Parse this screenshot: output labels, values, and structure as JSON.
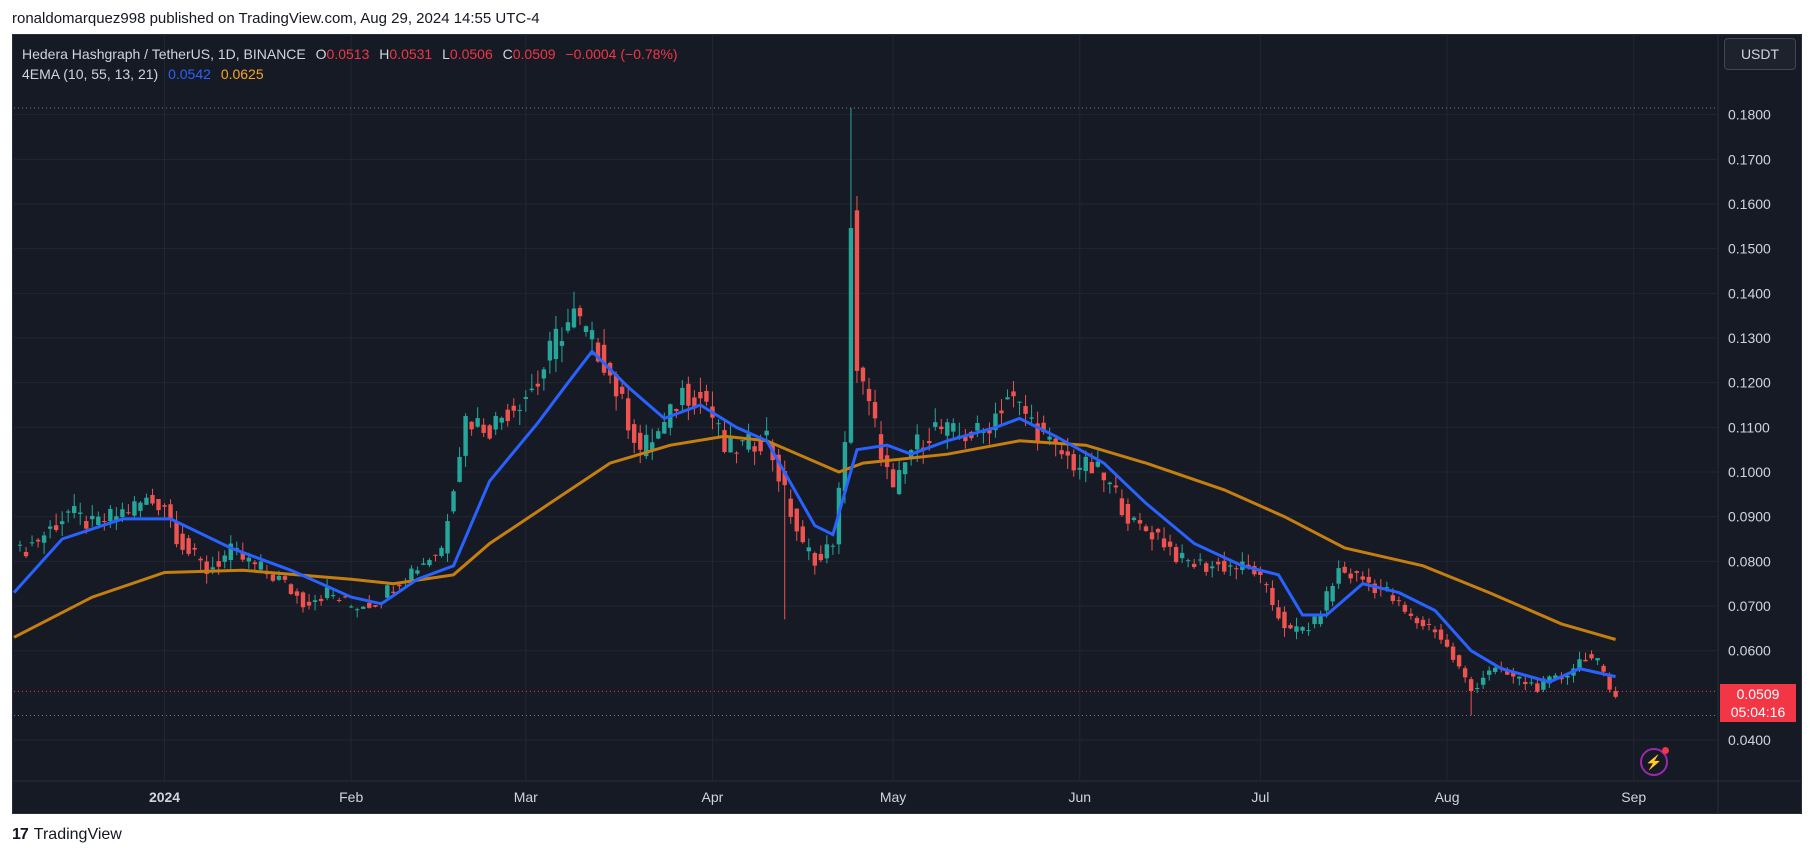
{
  "header": {
    "published": "ronaldomarquez998 published on TradingView.com, Aug 29, 2024 14:55 UTC-4"
  },
  "legend": {
    "symbol": "Hedera Hashgraph / TetherUS, 1D, BINANCE",
    "o_label": "O",
    "o_value": "0.0513",
    "h_label": "H",
    "h_value": "0.0531",
    "l_label": "L",
    "l_value": "0.0506",
    "c_label": "C",
    "c_value": "0.0509",
    "change": "−0.0004 (−0.78%)",
    "indicator": "4EMA (10, 55, 13, 21)",
    "ema_fast_value": "0.0542",
    "ema_slow_value": "0.0625"
  },
  "currency_button": "USDT",
  "price_tag": {
    "price": "0.0509",
    "countdown": "05:04:16"
  },
  "brand": "TradingView",
  "colors": {
    "up": "#26a69a",
    "down": "#ef5350",
    "ema_fast": "#2962ff",
    "ema_slow": "#c47f10",
    "bg": "#161a25"
  },
  "chart_data": {
    "type": "candlestick",
    "title": "Hedera Hashgraph / TetherUS, 1D, BINANCE",
    "xlabel": "",
    "ylabel": "",
    "x_ticks": [
      "2024",
      "Feb",
      "Mar",
      "Apr",
      "May",
      "Jun",
      "Jul",
      "Aug",
      "Sep"
    ],
    "y_ticks": [
      "0.1800",
      "0.1700",
      "0.1600",
      "0.1500",
      "0.1400",
      "0.1300",
      "0.1200",
      "0.1100",
      "0.1000",
      "0.0900",
      "0.0800",
      "0.0700",
      "0.0600",
      "0.0400"
    ],
    "ylim": [
      0.0315,
      0.19
    ],
    "x_range": [
      "2023-12-07",
      "2024-09-15"
    ],
    "reference_lines": [
      0.1815,
      0.0509,
      0.0455
    ],
    "series": [
      {
        "name": "HBAR/USDT",
        "points": [
          [
            "2023-12-08",
            0.082
          ],
          [
            "2023-12-12",
            0.086
          ],
          [
            "2023-12-16",
            0.091
          ],
          [
            "2023-12-20",
            0.088
          ],
          [
            "2023-12-25",
            0.091
          ],
          [
            "2023-12-29",
            0.0935
          ],
          [
            "2024-01-01",
            0.093
          ],
          [
            "2024-01-03",
            0.086
          ],
          [
            "2024-01-05",
            0.082
          ],
          [
            "2024-01-08",
            0.078
          ],
          [
            "2024-01-12",
            0.082
          ],
          [
            "2024-01-16",
            0.079
          ],
          [
            "2024-01-20",
            0.076
          ],
          [
            "2024-01-24",
            0.071
          ],
          [
            "2024-01-28",
            0.073
          ],
          [
            "2024-02-01",
            0.07
          ],
          [
            "2024-02-05",
            0.071
          ],
          [
            "2024-02-09",
            0.076
          ],
          [
            "2024-02-13",
            0.08
          ],
          [
            "2024-02-16",
            0.083
          ],
          [
            "2024-02-18",
            0.098
          ],
          [
            "2024-02-20",
            0.112
          ],
          [
            "2024-02-24",
            0.11
          ],
          [
            "2024-02-28",
            0.115
          ],
          [
            "2024-03-03",
            0.12
          ],
          [
            "2024-03-06",
            0.13
          ],
          [
            "2024-03-09",
            0.135
          ],
          [
            "2024-03-12",
            0.129
          ],
          [
            "2024-03-14",
            0.125
          ],
          [
            "2024-03-17",
            0.115
          ],
          [
            "2024-03-20",
            0.105
          ],
          [
            "2024-03-24",
            0.11
          ],
          [
            "2024-03-27",
            0.118
          ],
          [
            "2024-03-31",
            0.116
          ],
          [
            "2024-04-03",
            0.105
          ],
          [
            "2024-04-07",
            0.106
          ],
          [
            "2024-04-10",
            0.108
          ],
          [
            "2024-04-13",
            0.095
          ],
          [
            "2024-04-16",
            0.083
          ],
          [
            "2024-04-19",
            0.08
          ],
          [
            "2024-04-21",
            0.085
          ],
          [
            "2024-04-23",
            0.105
          ],
          [
            "2024-04-24",
            0.157
          ],
          [
            "2024-04-25",
            0.123
          ],
          [
            "2024-04-28",
            0.11
          ],
          [
            "2024-05-01",
            0.095
          ],
          [
            "2024-05-04",
            0.105
          ],
          [
            "2024-05-08",
            0.11
          ],
          [
            "2024-05-12",
            0.108
          ],
          [
            "2024-05-16",
            0.109
          ],
          [
            "2024-05-20",
            0.117
          ],
          [
            "2024-05-23",
            0.113
          ],
          [
            "2024-05-27",
            0.106
          ],
          [
            "2024-05-31",
            0.102
          ],
          [
            "2024-06-04",
            0.1
          ],
          [
            "2024-06-07",
            0.095
          ],
          [
            "2024-06-10",
            0.088
          ],
          [
            "2024-06-14",
            0.086
          ],
          [
            "2024-06-18",
            0.08
          ],
          [
            "2024-06-22",
            0.079
          ],
          [
            "2024-06-26",
            0.079
          ],
          [
            "2024-06-30",
            0.078
          ],
          [
            "2024-07-04",
            0.068
          ],
          [
            "2024-07-06",
            0.064
          ],
          [
            "2024-07-10",
            0.066
          ],
          [
            "2024-07-14",
            0.078
          ],
          [
            "2024-07-18",
            0.076
          ],
          [
            "2024-07-22",
            0.073
          ],
          [
            "2024-07-26",
            0.067
          ],
          [
            "2024-07-30",
            0.065
          ],
          [
            "2024-08-03",
            0.056
          ],
          [
            "2024-08-05",
            0.051
          ],
          [
            "2024-08-08",
            0.056
          ],
          [
            "2024-08-12",
            0.054
          ],
          [
            "2024-08-16",
            0.052
          ],
          [
            "2024-08-20",
            0.054
          ],
          [
            "2024-08-24",
            0.059
          ],
          [
            "2024-08-26",
            0.057
          ],
          [
            "2024-08-28",
            0.0513
          ],
          [
            "2024-08-29",
            0.0509
          ]
        ]
      },
      {
        "name": "EMA fast",
        "points": [
          [
            "2023-12-07",
            0.073
          ],
          [
            "2023-12-15",
            0.085
          ],
          [
            "2023-12-25",
            0.0895
          ],
          [
            "2024-01-02",
            0.0895
          ],
          [
            "2024-01-12",
            0.083
          ],
          [
            "2024-01-22",
            0.078
          ],
          [
            "2024-02-01",
            0.072
          ],
          [
            "2024-02-06",
            0.0705
          ],
          [
            "2024-02-12",
            0.076
          ],
          [
            "2024-02-18",
            0.079
          ],
          [
            "2024-02-24",
            0.098
          ],
          [
            "2024-03-03",
            0.111
          ],
          [
            "2024-03-08",
            0.12
          ],
          [
            "2024-03-12",
            0.127
          ],
          [
            "2024-03-18",
            0.119
          ],
          [
            "2024-03-24",
            0.112
          ],
          [
            "2024-03-30",
            0.115
          ],
          [
            "2024-04-05",
            0.11
          ],
          [
            "2024-04-10",
            0.107
          ],
          [
            "2024-04-18",
            0.088
          ],
          [
            "2024-04-21",
            0.086
          ],
          [
            "2024-04-25",
            0.105
          ],
          [
            "2024-04-30",
            0.106
          ],
          [
            "2024-05-04",
            0.104
          ],
          [
            "2024-05-10",
            0.107
          ],
          [
            "2024-05-18",
            0.11
          ],
          [
            "2024-05-22",
            0.112
          ],
          [
            "2024-05-28",
            0.108
          ],
          [
            "2024-06-05",
            0.102
          ],
          [
            "2024-06-12",
            0.093
          ],
          [
            "2024-06-20",
            0.084
          ],
          [
            "2024-06-28",
            0.079
          ],
          [
            "2024-07-04",
            0.077
          ],
          [
            "2024-07-08",
            0.068
          ],
          [
            "2024-07-12",
            0.068
          ],
          [
            "2024-07-18",
            0.075
          ],
          [
            "2024-07-24",
            0.073
          ],
          [
            "2024-07-30",
            0.069
          ],
          [
            "2024-08-05",
            0.06
          ],
          [
            "2024-08-10",
            0.056
          ],
          [
            "2024-08-18",
            0.053
          ],
          [
            "2024-08-23",
            0.056
          ],
          [
            "2024-08-29",
            0.0542
          ]
        ]
      },
      {
        "name": "EMA slow",
        "points": [
          [
            "2023-12-07",
            0.063
          ],
          [
            "2023-12-20",
            0.072
          ],
          [
            "2024-01-01",
            0.0775
          ],
          [
            "2024-01-14",
            0.078
          ],
          [
            "2024-02-01",
            0.076
          ],
          [
            "2024-02-08",
            0.075
          ],
          [
            "2024-02-18",
            0.077
          ],
          [
            "2024-02-24",
            0.084
          ],
          [
            "2024-03-05",
            0.093
          ],
          [
            "2024-03-15",
            0.102
          ],
          [
            "2024-03-25",
            0.106
          ],
          [
            "2024-04-03",
            0.108
          ],
          [
            "2024-04-10",
            0.107
          ],
          [
            "2024-04-22",
            0.1
          ],
          [
            "2024-04-26",
            0.102
          ],
          [
            "2024-05-10",
            0.104
          ],
          [
            "2024-05-22",
            0.107
          ],
          [
            "2024-06-02",
            0.106
          ],
          [
            "2024-06-12",
            0.102
          ],
          [
            "2024-06-25",
            0.096
          ],
          [
            "2024-07-05",
            0.09
          ],
          [
            "2024-07-15",
            0.083
          ],
          [
            "2024-07-28",
            0.079
          ],
          [
            "2024-08-08",
            0.073
          ],
          [
            "2024-08-20",
            0.066
          ],
          [
            "2024-08-29",
            0.0625
          ]
        ]
      }
    ]
  }
}
